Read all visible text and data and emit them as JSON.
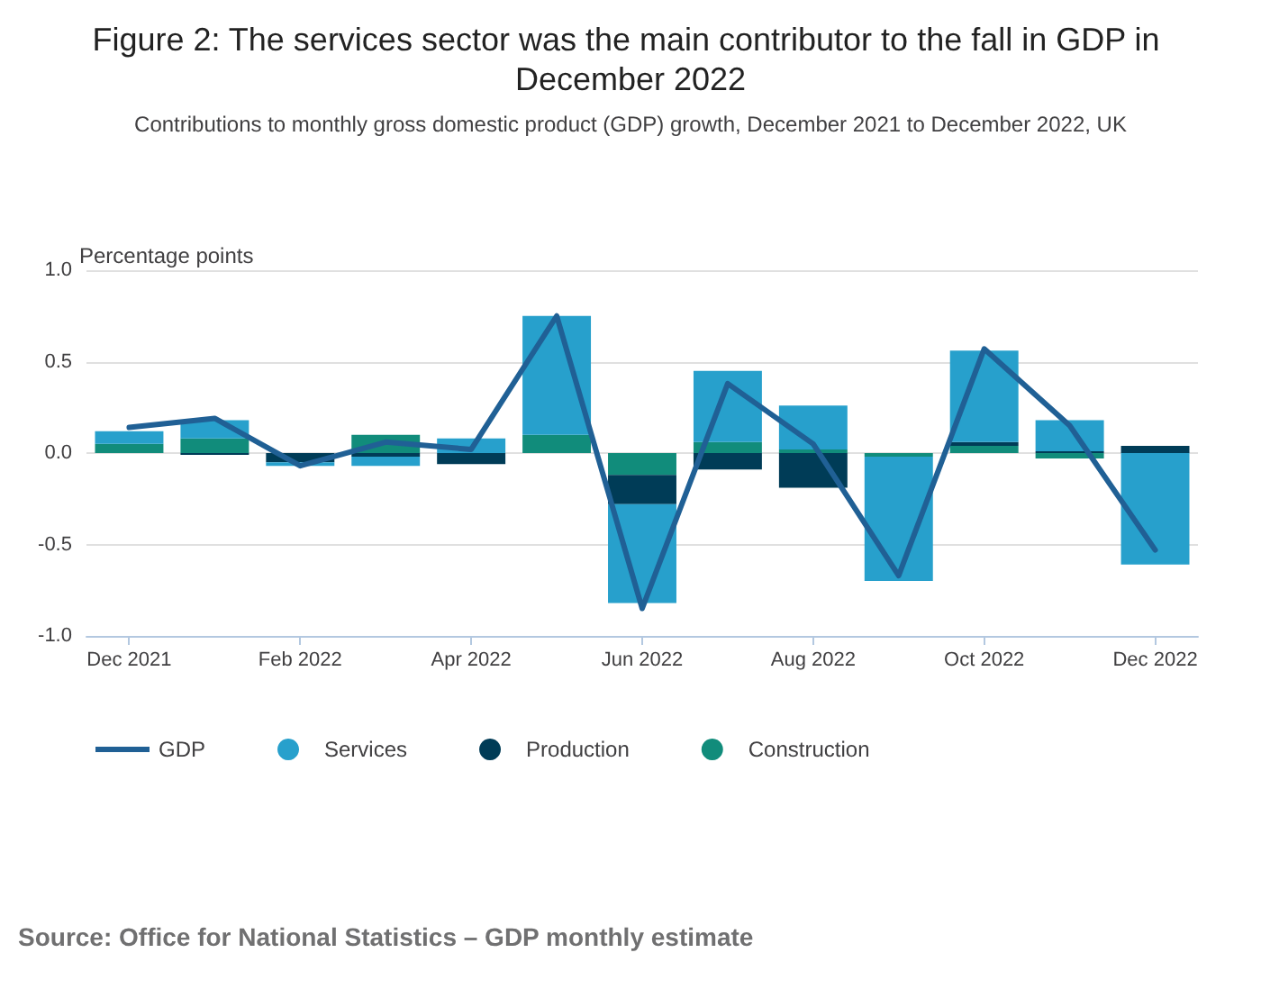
{
  "chart_data": {
    "type": "bar",
    "stacked": true,
    "title": "Figure 2: The services sector was the main contributor to the fall in GDP in December 2022",
    "subtitle": "Contributions to monthly gross domestic product (GDP) growth, December 2021 to December 2022, UK",
    "ylabel": "Percentage points",
    "categories": [
      "Dec 2021",
      null,
      "Feb 2022",
      null,
      "Apr 2022",
      null,
      "Jun 2022",
      null,
      "Aug 2022",
      null,
      "Oct 2022",
      null,
      "Dec 2022"
    ],
    "series": [
      {
        "name": "GDP",
        "type": "line",
        "color": "#206095",
        "values": [
          0.14,
          0.19,
          -0.07,
          0.06,
          0.02,
          0.75,
          -0.85,
          0.38,
          0.05,
          -0.67,
          0.57,
          0.15,
          -0.53
        ]
      },
      {
        "name": "Construction",
        "color": "#118c7b",
        "values": [
          0.05,
          0.08,
          0.0,
          0.1,
          0.0,
          0.1,
          -0.12,
          0.06,
          0.02,
          -0.02,
          0.04,
          -0.03,
          0.0
        ]
      },
      {
        "name": "Production",
        "color": "#003c57",
        "values": [
          0.0,
          -0.01,
          -0.05,
          -0.02,
          -0.06,
          0.0,
          -0.16,
          -0.09,
          -0.19,
          0.0,
          0.02,
          0.01,
          0.04
        ]
      },
      {
        "name": "Services",
        "color": "#27a0cc",
        "values": [
          0.07,
          0.1,
          -0.02,
          -0.05,
          0.08,
          0.65,
          -0.54,
          0.39,
          0.24,
          -0.68,
          0.5,
          0.17,
          -0.61
        ]
      }
    ],
    "ylim": [
      -1,
      1
    ],
    "yticks": [
      {
        "value": -1,
        "label": "-1.0"
      },
      {
        "value": -0.5,
        "label": "-0.5"
      },
      {
        "value": 0,
        "label": "0.0"
      },
      {
        "value": 0.5,
        "label": "0.5"
      },
      {
        "value": 1,
        "label": "1.0"
      }
    ],
    "grid": "y",
    "legend": "bottom",
    "marker": "none",
    "line_style": "solid",
    "annotations": [
      "Source: Office for National Statistics – GDP monthly estimate"
    ]
  }
}
